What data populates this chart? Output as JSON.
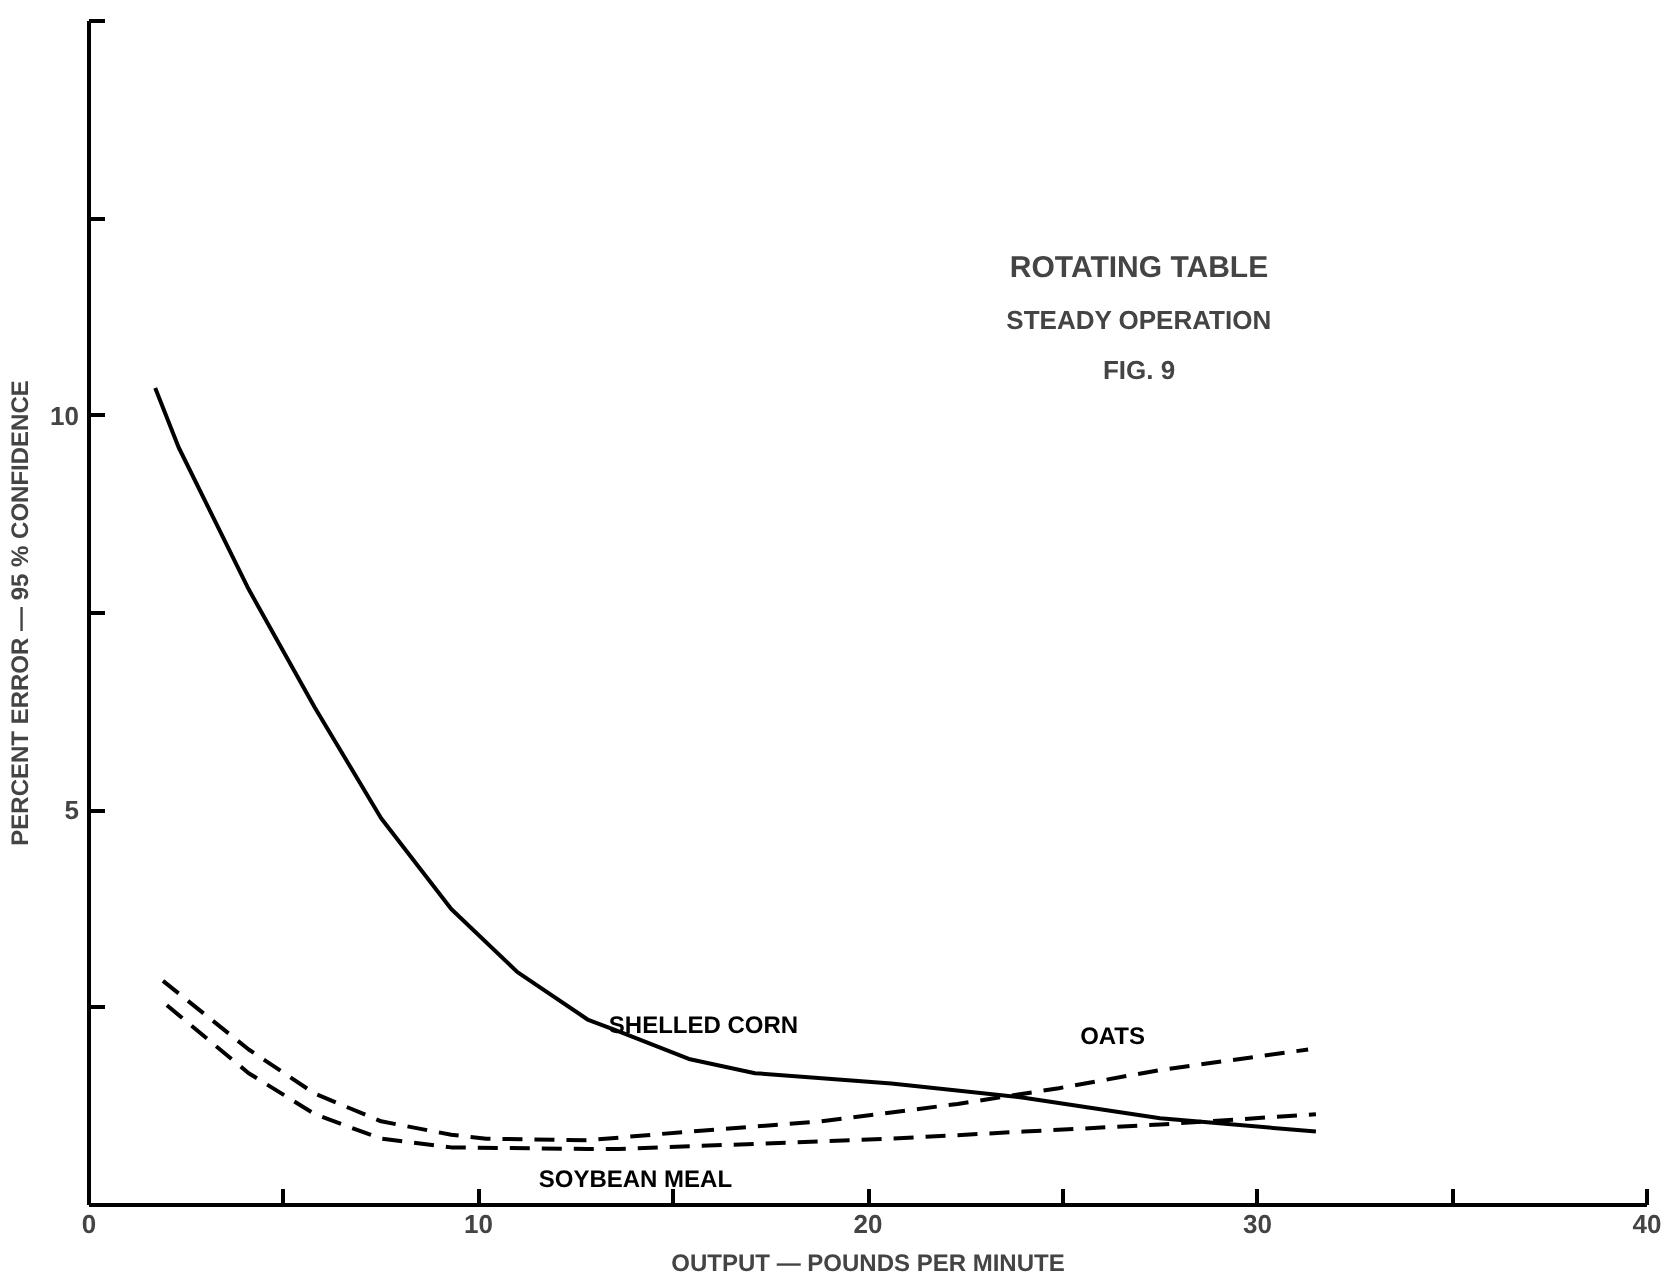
{
  "chart_data": {
    "type": "line",
    "title": "ROTATING TABLE",
    "subtitle": "STEADY OPERATION",
    "annotations": [
      "FIG. 9"
    ],
    "xlabel": "OUTPUT — POUNDS PER MINUTE",
    "ylabel": "PERCENT ERROR — 95 % CONFIDENCE",
    "xlim": [
      0,
      40
    ],
    "ylim": [
      0,
      15
    ],
    "xticks": [
      0,
      {
        "value": 5,
        "label": null
      },
      10,
      {
        "value": 15,
        "label": null
      },
      20,
      {
        "value": 25,
        "label": null
      },
      30,
      {
        "value": 35,
        "label": null
      },
      40
    ],
    "yticks": [
      {
        "value": 2.5,
        "label": null
      },
      5,
      {
        "value": 7.5,
        "label": null
      },
      10,
      {
        "value": 12.5,
        "label": null
      },
      {
        "value": 15,
        "label": null
      }
    ],
    "grid": false,
    "marker": "none",
    "series": [
      {
        "name": "SHELLED CORN",
        "color": "#000000",
        "line_style": "solid",
        "x": [
          1.7,
          2.3,
          4.1,
          5.8,
          7.5,
          9.3,
          11.0,
          12.8,
          13.6,
          15.4,
          17.1,
          20.6,
          24.0,
          27.5,
          31.5
        ],
        "values": [
          10.35,
          9.6,
          7.8,
          6.3,
          4.9,
          3.75,
          2.95,
          2.35,
          2.2,
          1.85,
          1.67,
          1.54,
          1.36,
          1.1,
          0.93
        ]
      },
      {
        "name": "OATS",
        "color": "#000000",
        "line_style": "dashed",
        "x": [
          1.9,
          4.1,
          5.8,
          7.5,
          9.3,
          10.2,
          12.8,
          15.4,
          18.8,
          22.3,
          24.9,
          27.5,
          31.3
        ],
        "values": [
          2.84,
          1.97,
          1.41,
          1.06,
          0.89,
          0.84,
          0.82,
          0.93,
          1.06,
          1.28,
          1.48,
          1.71,
          1.97
        ]
      },
      {
        "name": "SOYBEAN MEAL",
        "color": "#000000",
        "line_style": "dashed",
        "x": [
          2.0,
          4.1,
          5.8,
          7.5,
          9.3,
          12.8,
          13.6,
          20.6,
          24.0,
          27.5,
          31.5
        ],
        "values": [
          2.53,
          1.67,
          1.15,
          0.84,
          0.73,
          0.71,
          0.71,
          0.84,
          0.93,
          1.02,
          1.15
        ]
      }
    ]
  }
}
